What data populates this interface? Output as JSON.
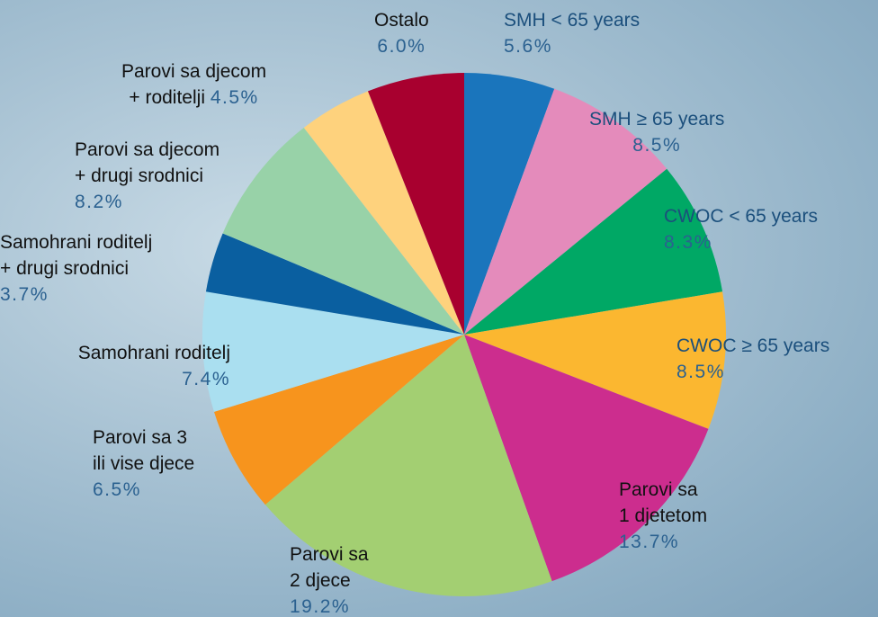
{
  "chart_data": {
    "type": "pie",
    "categories": [
      "SMH < 65 years",
      "SMH ≥ 65 years",
      "CWOC < 65 years",
      "CWOC ≥ 65 years",
      "Parovi sa\n1 djetetom",
      "Parovi sa\n2 djece",
      "Parovi sa 3\nili vise djece",
      "Samohrani roditelj",
      "Samohrani roditelj\n+ drugi srodnici",
      "Parovi sa djecom\n+ drugi srodnici",
      "Parovi sa djecom\n+ roditelji",
      "Ostalo"
    ],
    "values": [
      5.6,
      8.5,
      8.3,
      8.5,
      13.7,
      19.2,
      6.5,
      7.4,
      3.7,
      8.2,
      4.5,
      6.0
    ],
    "value_labels": [
      "5.6%",
      "8.5%",
      "8.3%",
      "8.5%",
      "13.7%",
      "19.2%",
      "6.5%",
      "7.4%",
      "3.7%",
      "8.2%",
      "4.5%",
      "6.0%"
    ],
    "colors": [
      "#1a75bc",
      "#e48bbb",
      "#00a865",
      "#fbb730",
      "#cc2d8e",
      "#a3cf72",
      "#f7941d",
      "#aadff0",
      "#0a5fa0",
      "#98d2a8",
      "#fed27d",
      "#a8002f"
    ]
  }
}
